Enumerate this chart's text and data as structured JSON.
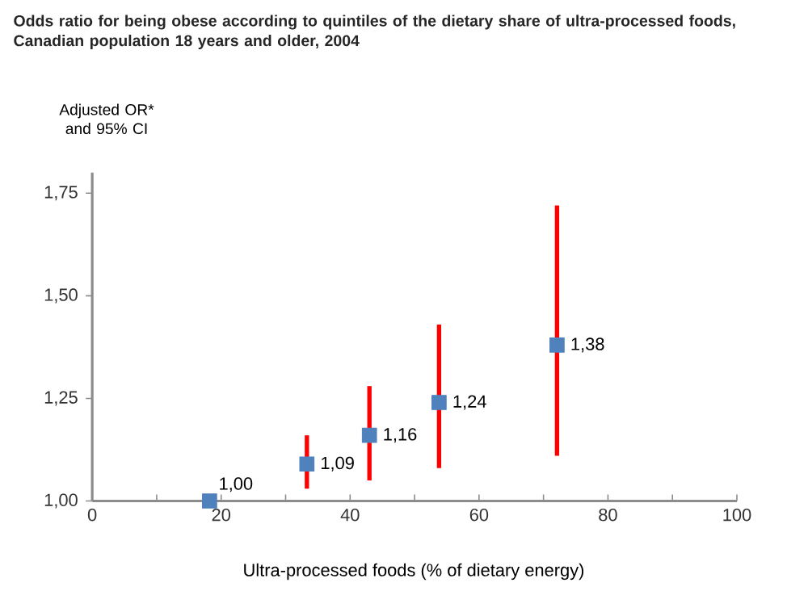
{
  "chart_data": {
    "type": "scatter",
    "title": "Odds ratio for being obese according to quintiles of the dietary share of ultra-processed foods, Canadian population 18 years and older, 2004",
    "ylabel": "Adjusted OR* and 95% CI",
    "xlabel": "Ultra-processed foods (% of dietary energy)",
    "x": [
      18.2,
      33.3,
      43.0,
      53.8,
      72.1
    ],
    "series": [
      {
        "color": "#4f81bd",
        "values": [
          1.0,
          1.09,
          1.16,
          1.24,
          1.38
        ],
        "errors": [
          null,
          [
            1.03,
            1.16
          ],
          [
            1.05,
            1.28
          ],
          [
            1.08,
            1.43
          ],
          [
            1.11,
            1.72
          ]
        ],
        "value_labels": [
          "1,00",
          "1,09",
          "1,16",
          "1,24",
          "1,38"
        ]
      }
    ],
    "marker": "square",
    "xlim": [
      0,
      100
    ],
    "xticks": [
      0,
      {
        "value": 10,
        "label": null
      },
      20,
      {
        "value": 30,
        "label": null
      },
      40,
      {
        "value": 50,
        "label": null
      },
      60,
      {
        "value": 70,
        "label": null
      },
      80,
      {
        "value": 90,
        "label": null
      },
      100
    ],
    "ylim": [
      1.0,
      1.8
    ],
    "yticks": [
      {
        "value": 1.0,
        "label": "1,00"
      },
      {
        "value": 1.25,
        "label": "1,25"
      },
      {
        "value": 1.5,
        "label": "1,50"
      },
      {
        "value": 1.75,
        "label": "1,75"
      }
    ]
  }
}
